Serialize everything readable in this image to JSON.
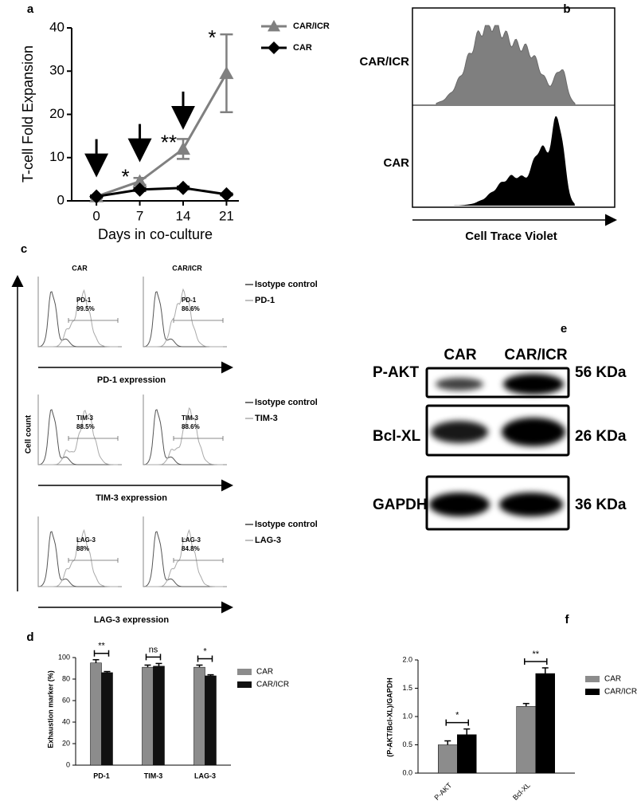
{
  "chart_data": [
    {
      "label": "a",
      "type": "line",
      "ylabel": "T-cell Fold Expansion",
      "xlabel": "Days in co-culture",
      "x": [
        0,
        7,
        14,
        21
      ],
      "xlim": [
        -4,
        23
      ],
      "xticks": [
        0,
        7,
        14,
        21
      ],
      "ylim": [
        0,
        40
      ],
      "yticks": [
        0,
        10,
        20,
        30,
        40
      ],
      "series": [
        {
          "name": "CAR/ICR",
          "color": "#808080",
          "marker": "triangle",
          "values": [
            1,
            4.5,
            12,
            29.5
          ],
          "errors": [
            0.3,
            0.8,
            2.3,
            9
          ]
        },
        {
          "name": "CAR",
          "color": "#000000",
          "marker": "diamond",
          "values": [
            1,
            2.6,
            3,
            1.5
          ],
          "errors": [
            0.2,
            0.3,
            0.3,
            0.2
          ]
        }
      ],
      "annotations": [
        null,
        "*",
        "**",
        "*"
      ]
    },
    {
      "label": "d",
      "type": "bar",
      "ylabel": "Exhaustion marker (%)",
      "categories": [
        "PD-1",
        "TIM-3",
        "LAG-3"
      ],
      "ylim": [
        0,
        100
      ],
      "yticks": [
        0,
        20,
        40,
        60,
        80,
        100
      ],
      "series": [
        {
          "name": "CAR",
          "color": "#8c8c8c",
          "values": [
            95,
            91,
            91
          ],
          "errors": [
            3,
            2,
            2
          ]
        },
        {
          "name": "CAR/ICR",
          "color": "#111111",
          "values": [
            86,
            92,
            83
          ],
          "errors": [
            1,
            2.5,
            1
          ]
        }
      ],
      "annotations": [
        "**",
        "ns",
        "*"
      ]
    },
    {
      "label": "f",
      "type": "bar",
      "ylabel": "(P-AKT/Bcl-XL)/GAPDH",
      "categories": [
        "P-AKT",
        "Bcl-XL"
      ],
      "ylim": [
        0,
        2
      ],
      "yticks": [
        {
          "value": 0,
          "label": "0.0"
        },
        0.5,
        {
          "value": 1,
          "label": "1.0"
        },
        1.5,
        {
          "value": 2,
          "label": "2.0"
        }
      ],
      "series": [
        {
          "name": "CAR",
          "color": "#8c8c8c",
          "values": [
            0.5,
            1.18
          ],
          "errors": [
            0.07,
            0.05
          ]
        },
        {
          "name": "CAR/ICR",
          "color": "#000000",
          "values": [
            0.68,
            1.76
          ],
          "errors": [
            0.1,
            0.1
          ]
        }
      ],
      "annotations": [
        "*",
        "**"
      ]
    }
  ],
  "panel_b": {
    "label": "b",
    "samples": [
      "CAR/ICR",
      "CAR"
    ],
    "xlabel": "Cell Trace Violet"
  },
  "panel_c": {
    "label": "c",
    "ylabel": "Cell count",
    "columns": [
      "CAR",
      "CAR/ICR"
    ],
    "rows": [
      {
        "xlabel": "PD-1 expression",
        "legend": [
          "Isotype control",
          "PD-1"
        ],
        "gates": [
          {
            "marker": "PD-1",
            "percent": "99.5%"
          },
          {
            "marker": "PD-1",
            "percent": "86.6%"
          }
        ]
      },
      {
        "xlabel": "TIM-3 expression",
        "legend": [
          "Isotype control",
          "TIM-3"
        ],
        "gates": [
          {
            "marker": "TIM-3",
            "percent": "88.5%"
          },
          {
            "marker": "TIM-3",
            "percent": "88.6%"
          }
        ]
      },
      {
        "xlabel": "LAG-3 expression",
        "legend": [
          "Isotype control",
          "LAG-3"
        ],
        "gates": [
          {
            "marker": "LAG-3",
            "percent": "88%"
          },
          {
            "marker": "LAG-3",
            "percent": "84.8%"
          }
        ]
      }
    ]
  },
  "panel_e": {
    "label": "e",
    "columns": [
      "CAR",
      "CAR/ICR"
    ],
    "rows": [
      {
        "protein": "P-AKT",
        "size": "56 KDa"
      },
      {
        "protein": "Bcl-XL",
        "size": "26 KDa"
      },
      {
        "protein": "GAPDH",
        "size": "36 KDa"
      }
    ]
  }
}
